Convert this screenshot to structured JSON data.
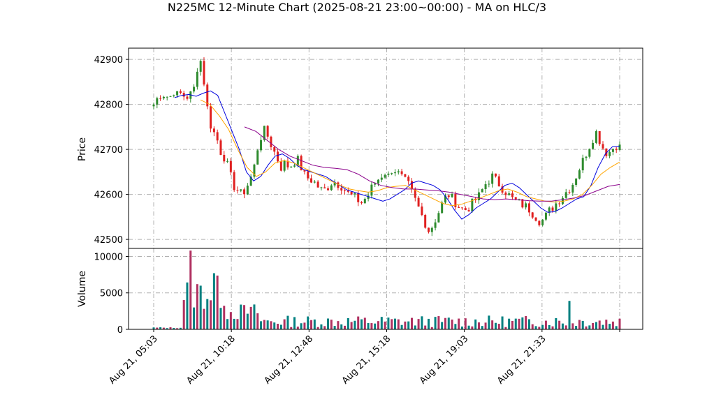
{
  "chart_data": {
    "type": "candlestick",
    "title": "N225MC 12-Minute Chart (2025-08-21 23:00~00:00) - MA on HLC/3",
    "price_panel": {
      "ylabel": "Price",
      "yticks": [
        42500,
        42600,
        42700,
        42800,
        42900
      ],
      "ylim": [
        42480,
        42925
      ],
      "grid": true
    },
    "volume_panel": {
      "ylabel": "Volume",
      "yticks": [
        0,
        5000,
        10000
      ],
      "ylim": [
        0,
        11100
      ],
      "grid": true
    },
    "xticks": [
      "Aug 21, 05:03",
      "Aug 21, 10:18",
      "Aug 21, 12:48",
      "Aug 21, 15:18",
      "Aug 21, 19:03",
      "Aug 21, 21:33",
      ""
    ],
    "colors": {
      "up": "#2e8b2e",
      "down": "#e02020",
      "ma_fast": "#0000dd",
      "ma_mid": "#ffa500",
      "ma_slow": "#8b008b",
      "vol_a": "#008080",
      "vol_b": "#b03060"
    },
    "price_path": [
      42800,
      42815,
      42825,
      42820,
      42815,
      42830,
      42820,
      42825,
      42815,
      42820,
      42830,
      42885,
      42900,
      42820,
      42760,
      42740,
      42720,
      42690,
      42680,
      42650,
      42620,
      42610,
      42600,
      42610,
      42630,
      42650,
      42700,
      42730,
      42745,
      42720,
      42700,
      42680,
      42660,
      42670,
      42660,
      42670,
      42680,
      42660,
      42640,
      42635,
      42630,
      42620,
      42610,
      42610,
      42620,
      42630,
      42625,
      42620,
      42610,
      42600,
      42595,
      42590,
      42580,
      42590,
      42600,
      42620,
      42630,
      42640,
      42650,
      42640,
      42660,
      42650,
      42640,
      42630,
      42620,
      42600,
      42580,
      42560,
      42540,
      42520,
      42530,
      42550,
      42570,
      42590,
      42600,
      42590,
      42580,
      42570,
      42565,
      42570,
      42580,
      42590,
      42600,
      42620,
      42630,
      42640,
      42630,
      42620,
      42610,
      42600,
      42590,
      42585,
      42580,
      42575,
      42570,
      42560,
      42550,
      42540,
      42545,
      42560,
      42570,
      42580,
      42590,
      42600,
      42610,
      42620,
      42640,
      42660,
      42680,
      42700,
      42720,
      42740,
      42720,
      42700,
      42690,
      42700,
      42710,
      42705
    ],
    "ma_fast": [
      42815,
      42820,
      42822,
      42818,
      42825,
      42830,
      42820,
      42780,
      42740,
      42700,
      42650,
      42630,
      42640,
      42665,
      42685,
      42690,
      42680,
      42665,
      42655,
      42650,
      42645,
      42640,
      42630,
      42620,
      42610,
      42605,
      42600,
      42595,
      42590,
      42585,
      42590,
      42600,
      42610,
      42625,
      42630,
      42625,
      42620,
      42610,
      42590,
      42565,
      42545,
      42555,
      42570,
      42580,
      42590,
      42605,
      42620,
      42625,
      42615,
      42600,
      42585,
      42570,
      42560,
      42562,
      42570,
      42580,
      42590,
      42595,
      42620,
      42660,
      42690,
      42706,
      42707
    ],
    "ma_mid": [
      42810,
      42800,
      42775,
      42745,
      42700,
      42660,
      42640,
      42650,
      42670,
      42675,
      42670,
      42660,
      42650,
      42640,
      42630,
      42620,
      42612,
      42608,
      42605,
      42608,
      42615,
      42618,
      42620,
      42610,
      42600,
      42590,
      42580,
      42575,
      42578,
      42585,
      42592,
      42600,
      42608,
      42612,
      42605,
      42595,
      42590,
      42585,
      42583,
      42585,
      42590,
      42600,
      42620,
      42645,
      42660,
      42672
    ],
    "ma_slow": [
      42750,
      42740,
      42720,
      42700,
      42685,
      42675,
      42665,
      42660,
      42658,
      42655,
      42645,
      42630,
      42620,
      42615,
      42612,
      42612,
      42610,
      42608,
      42605,
      42600,
      42595,
      42590,
      42588,
      42590,
      42588,
      42586,
      42585,
      42585,
      42588,
      42592,
      42598,
      42608,
      42618,
      42622
    ]
  }
}
